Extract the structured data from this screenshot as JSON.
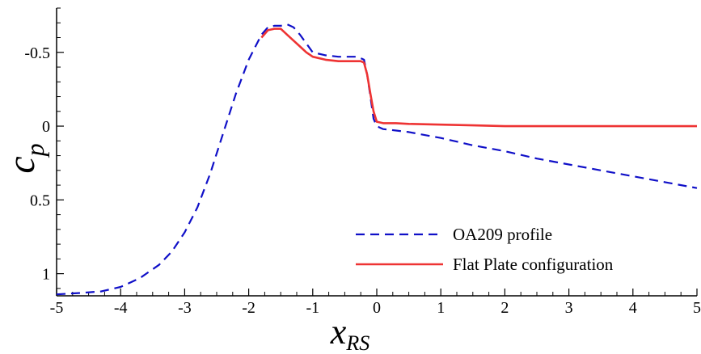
{
  "chart_data": {
    "type": "line",
    "xlabel": "x",
    "xlabel_sub": "RS",
    "ylabel": "c",
    "ylabel_sub": "p",
    "xlim": [
      -5,
      5
    ],
    "ylim": [
      1.15,
      -0.8
    ],
    "y_inverted": true,
    "x_ticks": [
      -5,
      -4,
      -3,
      -2,
      -1,
      0,
      1,
      2,
      3,
      4,
      5
    ],
    "x_tick_labels": [
      "-5",
      "-4",
      "-3",
      "-2",
      "-1",
      "0",
      "1",
      "2",
      "3",
      "4",
      "5"
    ],
    "y_ticks": [
      -0.5,
      0,
      0.5,
      1
    ],
    "y_tick_labels": [
      "-0.5",
      "0",
      "0.5",
      "1"
    ],
    "grid": false,
    "legend_position": "bottom-right",
    "series": [
      {
        "name": "OA209 profile",
        "color": "#1010c8",
        "style": "dashed",
        "x": [
          -5.0,
          -4.6,
          -4.3,
          -4.0,
          -3.7,
          -3.4,
          -3.2,
          -3.0,
          -2.8,
          -2.6,
          -2.4,
          -2.2,
          -2.0,
          -1.8,
          -1.7,
          -1.6,
          -1.5,
          -1.4,
          -1.3,
          -1.2,
          -1.1,
          -1.0,
          -0.8,
          -0.6,
          -0.4,
          -0.3,
          -0.2,
          -0.15,
          -0.1,
          -0.05,
          0.0,
          0.1,
          0.3,
          0.5,
          1.0,
          1.5,
          2.0,
          2.5,
          3.0,
          3.5,
          4.0,
          4.5,
          5.0
        ],
        "y": [
          1.14,
          1.13,
          1.12,
          1.09,
          1.03,
          0.94,
          0.85,
          0.72,
          0.55,
          0.32,
          0.05,
          -0.22,
          -0.45,
          -0.62,
          -0.67,
          -0.68,
          -0.68,
          -0.69,
          -0.67,
          -0.62,
          -0.56,
          -0.5,
          -0.48,
          -0.47,
          -0.47,
          -0.47,
          -0.45,
          -0.35,
          -0.2,
          -0.05,
          0.0,
          0.02,
          0.03,
          0.04,
          0.08,
          0.13,
          0.17,
          0.22,
          0.26,
          0.3,
          0.34,
          0.38,
          0.42
        ]
      },
      {
        "name": "Flat Plate configuration",
        "color": "#ee3333",
        "style": "solid",
        "x": [
          -1.8,
          -1.7,
          -1.6,
          -1.5,
          -1.4,
          -1.3,
          -1.2,
          -1.1,
          -1.0,
          -0.8,
          -0.6,
          -0.4,
          -0.25,
          -0.2,
          -0.15,
          -0.1,
          -0.05,
          0.0,
          0.05,
          0.1,
          0.3,
          0.5,
          1.0,
          1.5,
          2.0,
          3.0,
          4.0,
          5.0
        ],
        "y": [
          -0.6,
          -0.65,
          -0.66,
          -0.66,
          -0.62,
          -0.58,
          -0.54,
          -0.5,
          -0.47,
          -0.45,
          -0.44,
          -0.44,
          -0.44,
          -0.43,
          -0.35,
          -0.22,
          -0.1,
          -0.03,
          -0.025,
          -0.02,
          -0.02,
          -0.015,
          -0.01,
          -0.005,
          0.0,
          0.0,
          0.0,
          0.0
        ]
      }
    ]
  }
}
